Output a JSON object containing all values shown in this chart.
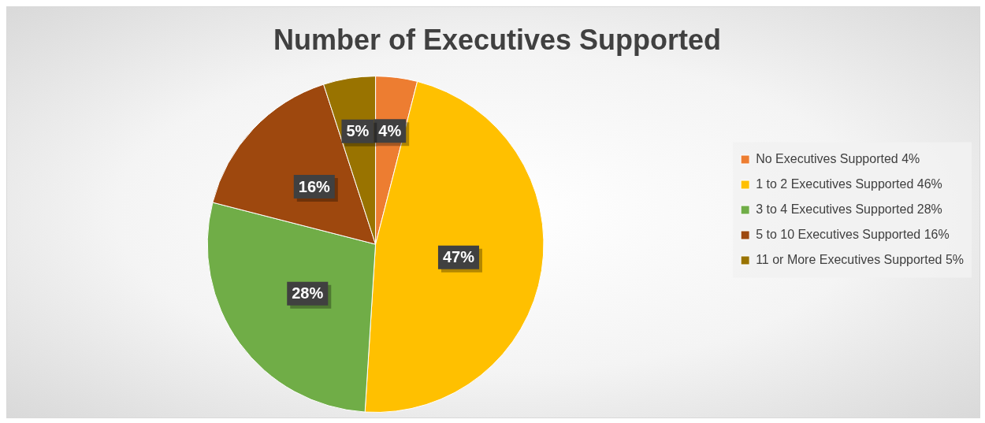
{
  "chart_data": {
    "type": "pie",
    "title": "Number of Executives Supported",
    "categories": [
      "No Executives Supported 4%",
      "1 to 2 Executives Supported 46%",
      "3 to 4 Executives Supported 28%",
      "5 to 10 Executives Supported 16%",
      "11 or More Executives Supported 5%"
    ],
    "values": [
      4,
      47,
      28,
      16,
      5
    ],
    "colors": [
      "#ed7d31",
      "#ffc000",
      "#70ad47",
      "#9e480e",
      "#997300"
    ],
    "value_labels": [
      "4%",
      "47%",
      "28%",
      "16%",
      "5%"
    ],
    "legend": "right"
  }
}
